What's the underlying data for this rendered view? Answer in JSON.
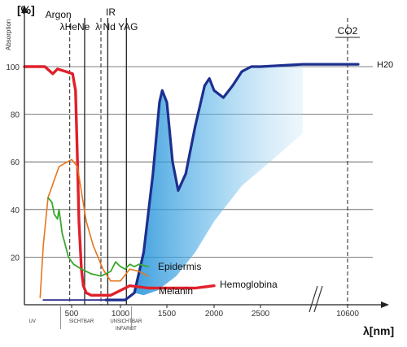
{
  "chart_data": {
    "type": "line",
    "ylabel_unit": "[%]",
    "ylabel": "Absorption",
    "xlabel": "λ[nm]",
    "ylim": [
      0,
      105
    ],
    "y_ticks": [
      20,
      40,
      60,
      80,
      100
    ],
    "x_ticks": [
      {
        "label": "500",
        "nm": 500
      },
      {
        "label": "1000",
        "nm": 1000
      },
      {
        "label": "1500",
        "nm": 1500
      },
      {
        "label": "2000",
        "nm": 2000
      },
      {
        "label": "2500",
        "nm": 2500
      },
      {
        "label": "10600",
        "nm": 10600
      }
    ],
    "regions": [
      {
        "label": "UV",
        "nm": 250
      },
      {
        "label": "SICHTBAR",
        "nm": 600
      },
      {
        "label": "UNSICHTBAR",
        "nm": 1060
      },
      {
        "label": "INFAROT",
        "nm": 1060
      }
    ],
    "lasers": [
      {
        "label": "Argon",
        "nm": 488
      },
      {
        "label": "λHeNe",
        "nm": 633
      },
      {
        "label": "IR",
        "nm": 800
      },
      {
        "label": "λ Nd YAG",
        "nm": 1064
      },
      {
        "label": "CO2",
        "nm": 10600
      }
    ],
    "laser_line_nm": [
      488,
      633,
      800,
      870,
      1064,
      10600
    ],
    "series": [
      {
        "name": "H2O",
        "color": "#1d2f8f",
        "points": [
          [
            850,
            2
          ],
          [
            1050,
            2
          ],
          [
            1150,
            5
          ],
          [
            1250,
            22
          ],
          [
            1350,
            55
          ],
          [
            1420,
            85
          ],
          [
            1450,
            90
          ],
          [
            1500,
            85
          ],
          [
            1560,
            60
          ],
          [
            1620,
            48
          ],
          [
            1700,
            55
          ],
          [
            1800,
            75
          ],
          [
            1900,
            92
          ],
          [
            1950,
            95
          ],
          [
            2000,
            90
          ],
          [
            2100,
            87
          ],
          [
            2200,
            92
          ],
          [
            2300,
            98
          ],
          [
            2400,
            100
          ],
          [
            2500,
            100
          ],
          [
            2950,
            101
          ],
          [
            10600,
            101
          ],
          [
            11000,
            101
          ]
        ]
      },
      {
        "name": "Hemoglobina",
        "color": "#e0202a",
        "points": [
          [
            200,
            100
          ],
          [
            330,
            100
          ],
          [
            380,
            97
          ],
          [
            410,
            99
          ],
          [
            460,
            98
          ],
          [
            510,
            97
          ],
          [
            540,
            90
          ],
          [
            560,
            60
          ],
          [
            575,
            35
          ],
          [
            600,
            15
          ],
          [
            620,
            8
          ],
          [
            650,
            5
          ],
          [
            700,
            4
          ],
          [
            900,
            4
          ],
          [
            1000,
            6
          ],
          [
            1100,
            8
          ],
          [
            1300,
            7
          ],
          [
            1500,
            7
          ],
          [
            1800,
            7
          ],
          [
            2000,
            8
          ]
        ]
      },
      {
        "name": "Melanin",
        "color": "#e8761c",
        "points": [
          [
            300,
            3
          ],
          [
            320,
            25
          ],
          [
            350,
            45
          ],
          [
            420,
            58
          ],
          [
            500,
            61
          ],
          [
            560,
            58
          ],
          [
            610,
            45
          ],
          [
            650,
            35
          ],
          [
            720,
            25
          ],
          [
            820,
            15
          ],
          [
            900,
            10
          ],
          [
            1000,
            10
          ],
          [
            1100,
            15
          ],
          [
            1200,
            14
          ],
          [
            1300,
            12
          ]
        ]
      },
      {
        "name": "Epidermis",
        "color": "#38a82c",
        "points": [
          [
            350,
            45
          ],
          [
            375,
            43
          ],
          [
            390,
            38
          ],
          [
            410,
            36
          ],
          [
            420,
            40
          ],
          [
            440,
            30
          ],
          [
            460,
            25
          ],
          [
            480,
            20
          ],
          [
            520,
            17
          ],
          [
            600,
            15
          ],
          [
            700,
            13
          ],
          [
            800,
            12
          ],
          [
            900,
            14
          ],
          [
            950,
            18
          ],
          [
            1000,
            16
          ],
          [
            1050,
            15
          ],
          [
            1100,
            17
          ],
          [
            1150,
            16
          ],
          [
            1200,
            17
          ],
          [
            1300,
            16
          ]
        ]
      },
      {
        "name": "",
        "color": "#2a2a8a",
        "points": [
          [
            320,
            2
          ],
          [
            600,
            2
          ],
          [
            850,
            2
          ]
        ]
      }
    ],
    "water_band_label": "H20"
  }
}
